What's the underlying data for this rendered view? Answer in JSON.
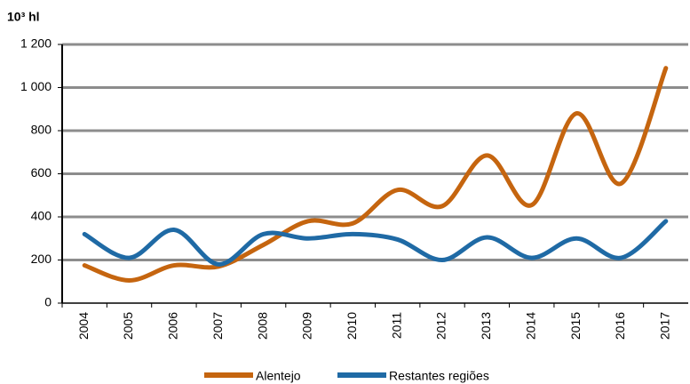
{
  "chart_data": {
    "type": "line",
    "y_label": "10³ hl",
    "categories": [
      "2004",
      "2005",
      "2006",
      "2007",
      "2008",
      "2009",
      "2010",
      "2011",
      "2012",
      "2013",
      "2014",
      "2015",
      "2016",
      "2017"
    ],
    "series": [
      {
        "name": "Alentejo",
        "color": "#c5650f",
        "values": [
          175,
          105,
          175,
          170,
          270,
          380,
          370,
          525,
          450,
          685,
          455,
          880,
          555,
          1090
        ]
      },
      {
        "name": "Restantes regiões",
        "color": "#1f6aa5",
        "values": [
          320,
          210,
          340,
          180,
          320,
          300,
          320,
          295,
          200,
          305,
          210,
          300,
          210,
          380
        ]
      }
    ],
    "ylim": [
      0,
      1200
    ],
    "yticks": [
      0,
      200,
      400,
      600,
      800,
      {
        "value": 1000,
        "label": "1 000"
      },
      {
        "value": 1200,
        "label": "1 200"
      }
    ],
    "grid": true,
    "smooth": true,
    "legend": "bottom"
  }
}
